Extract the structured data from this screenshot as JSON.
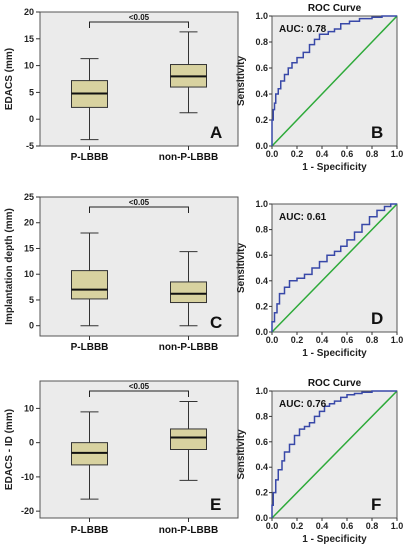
{
  "colors": {
    "box_panel_bg": "#ebebeb",
    "roc_panel_bg": "#ebebeb",
    "box_fill": "#d8d2a0",
    "box_stroke": "#333333",
    "roc_curve": "#3848a8",
    "roc_diagonal": "#2eaa3a"
  },
  "chart_data": [
    {
      "type": "box",
      "panel_label": "A",
      "ylabel": "EDACS (mm)",
      "ylim": [
        -5,
        20
      ],
      "yticks": [
        "-5",
        "0",
        "5",
        "10",
        "15",
        "20"
      ],
      "ytick_values": [
        -5,
        0,
        5,
        10,
        15,
        20
      ],
      "categories": [
        "P-LBBB",
        "non-P-LBBB"
      ],
      "boxes": [
        {
          "min": -3.8,
          "q1": 2.2,
          "median": 4.8,
          "q3": 7.2,
          "max": 11.3
        },
        {
          "min": 1.2,
          "q1": 6.0,
          "median": 8.0,
          "q3": 10.2,
          "max": 16.3
        }
      ],
      "significance": "<0.05",
      "grid": false
    },
    {
      "type": "line",
      "panel_label": "B",
      "title": "ROC Curve",
      "xlabel": "1 - Specificity",
      "ylabel": "Sensitivity",
      "auc": "AUC: 0.78",
      "xlim": [
        0,
        1
      ],
      "ylim": [
        0,
        1
      ],
      "xticks": [
        "0.0",
        "0.2",
        "0.4",
        "0.6",
        "0.8",
        "1.0"
      ],
      "yticks": [
        "0.0",
        "0.2",
        "0.4",
        "0.6",
        "0.8",
        "1.0"
      ],
      "tick_values": [
        0,
        0.2,
        0.4,
        0.6,
        0.8,
        1.0
      ],
      "series": [
        {
          "values_x": [
            0,
            0,
            0.01,
            0.02,
            0.03,
            0.05,
            0.07,
            0.1,
            0.13,
            0.16,
            0.2,
            0.25,
            0.3,
            0.34,
            0.38,
            0.45,
            0.5,
            0.55,
            0.62,
            0.7,
            0.8,
            0.88,
            0.95,
            1.0
          ],
          "values_y": [
            0,
            0.12,
            0.2,
            0.28,
            0.33,
            0.4,
            0.44,
            0.5,
            0.55,
            0.6,
            0.64,
            0.68,
            0.72,
            0.78,
            0.82,
            0.86,
            0.88,
            0.9,
            0.94,
            0.96,
            0.98,
            0.99,
            1.0,
            1.0
          ]
        },
        {
          "values_x": [
            0,
            1
          ],
          "values_y": [
            0,
            1
          ]
        }
      ]
    },
    {
      "type": "box",
      "panel_label": "C",
      "ylabel": "Implantation depth (mm)",
      "ylim": [
        -2,
        25
      ],
      "yticks": [
        "0",
        "5",
        "10",
        "15",
        "20",
        "25"
      ],
      "ytick_values": [
        0,
        5,
        10,
        15,
        20,
        25
      ],
      "categories": [
        "P-LBBB",
        "non-P-LBBB"
      ],
      "boxes": [
        {
          "min": 0.0,
          "q1": 5.2,
          "median": 7.0,
          "q3": 10.7,
          "max": 18.0
        },
        {
          "min": 0.0,
          "q1": 4.5,
          "median": 6.2,
          "q3": 8.5,
          "max": 14.4
        }
      ],
      "significance": "<0.05",
      "grid": false
    },
    {
      "type": "line",
      "panel_label": "D",
      "title": "",
      "xlabel": "1 - Specificity",
      "ylabel": "Sensitivity",
      "auc": "AUC: 0.61",
      "xlim": [
        0,
        1
      ],
      "ylim": [
        0,
        1
      ],
      "xticks": [
        "0.0",
        "0.2",
        "0.4",
        "0.6",
        "0.8",
        "1.0"
      ],
      "yticks": [
        "0.0",
        "0.2",
        "0.4",
        "0.6",
        "0.8",
        "1.0"
      ],
      "tick_values": [
        0,
        0.2,
        0.4,
        0.6,
        0.8,
        1.0
      ],
      "series": [
        {
          "values_x": [
            0,
            0.02,
            0.04,
            0.06,
            0.1,
            0.14,
            0.2,
            0.26,
            0.32,
            0.38,
            0.44,
            0.5,
            0.55,
            0.6,
            0.66,
            0.72,
            0.78,
            0.84,
            0.9,
            0.95,
            1.0
          ],
          "values_y": [
            0,
            0.08,
            0.15,
            0.22,
            0.3,
            0.35,
            0.4,
            0.42,
            0.45,
            0.5,
            0.55,
            0.6,
            0.63,
            0.67,
            0.72,
            0.78,
            0.84,
            0.9,
            0.95,
            0.98,
            1.0
          ]
        },
        {
          "values_x": [
            0,
            1
          ],
          "values_y": [
            0,
            1
          ]
        }
      ]
    },
    {
      "type": "box",
      "panel_label": "E",
      "ylabel": "EDACS - ID (mm)",
      "ylim": [
        -22,
        18
      ],
      "yticks": [
        "-20",
        "-10",
        "0",
        "10"
      ],
      "ytick_values": [
        -20,
        -10,
        0,
        10
      ],
      "categories": [
        "P-LBBB",
        "non-P-LBBB"
      ],
      "boxes": [
        {
          "min": -16.5,
          "q1": -6.5,
          "median": -3.0,
          "q3": 0.0,
          "max": 9.0
        },
        {
          "min": -11.0,
          "q1": -2.0,
          "median": 1.5,
          "q3": 4.0,
          "max": 12.0
        }
      ],
      "significance": "<0.05",
      "grid": false
    },
    {
      "type": "line",
      "panel_label": "F",
      "title": "ROC Curve",
      "xlabel": "1 - Specificity",
      "ylabel": "Sensitivity",
      "auc": "AUC: 0.76",
      "xlim": [
        0,
        1
      ],
      "ylim": [
        0,
        1
      ],
      "xticks": [
        "0.0",
        "0.2",
        "0.4",
        "0.6",
        "0.8",
        "1.0"
      ],
      "yticks": [
        "0.0",
        "0.2",
        "0.4",
        "0.6",
        "0.8",
        "1.0"
      ],
      "tick_values": [
        0,
        0.2,
        0.4,
        0.6,
        0.8,
        1.0
      ],
      "series": [
        {
          "values_x": [
            0,
            0.01,
            0.03,
            0.05,
            0.08,
            0.1,
            0.14,
            0.18,
            0.22,
            0.26,
            0.3,
            0.34,
            0.38,
            0.42,
            0.46,
            0.5,
            0.55,
            0.6,
            0.66,
            0.72,
            0.8,
            0.88,
            0.95,
            1.0
          ],
          "values_y": [
            0,
            0.1,
            0.2,
            0.3,
            0.38,
            0.45,
            0.52,
            0.58,
            0.65,
            0.7,
            0.72,
            0.75,
            0.8,
            0.84,
            0.88,
            0.9,
            0.92,
            0.95,
            0.97,
            0.98,
            0.99,
            1.0,
            1.0,
            1.0
          ]
        },
        {
          "values_x": [
            0,
            1
          ],
          "values_y": [
            0,
            1
          ]
        }
      ]
    }
  ]
}
